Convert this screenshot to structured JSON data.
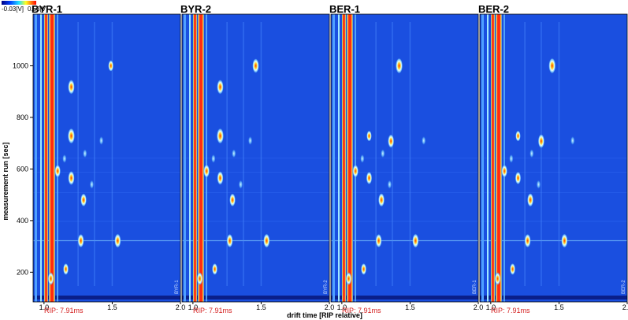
{
  "colorbar": {
    "min_label": "-0.03[V]",
    "max_label": "0.53[V]",
    "min_color": "#000080",
    "max_color": "#ff0000"
  },
  "chart_data": {
    "type": "heatmap",
    "title": "",
    "xlabel": "drift time [RIP relative]",
    "ylabel": "measurement run [sec]",
    "xlim": [
      0.92,
      2.0
    ],
    "ylim": [
      85,
      1200
    ],
    "x_ticks": [
      "1.0",
      "1.5",
      "2.0"
    ],
    "y_ticks": [
      200,
      400,
      600,
      800,
      1000
    ],
    "rip_label": "RIP: 7.91ms",
    "background_color": "#1a4fe0",
    "panels": [
      {
        "name": "BYR-1",
        "vertical_label": "BYR-1",
        "peaks": [
          {
            "x": 1.2,
            "y": 918,
            "i": 0.9
          },
          {
            "x": 1.2,
            "y": 728,
            "i": 1.0
          },
          {
            "x": 1.49,
            "y": 1000,
            "i": 0.55
          },
          {
            "x": 1.1,
            "y": 592,
            "i": 0.7
          },
          {
            "x": 1.2,
            "y": 565,
            "i": 0.85
          },
          {
            "x": 1.29,
            "y": 480,
            "i": 0.75
          },
          {
            "x": 1.27,
            "y": 322,
            "i": 0.8
          },
          {
            "x": 1.54,
            "y": 322,
            "i": 0.85
          },
          {
            "x": 1.16,
            "y": 212,
            "i": 0.6
          },
          {
            "x": 1.05,
            "y": 175,
            "i": 0.7
          },
          {
            "x": 1.42,
            "y": 710,
            "i": 0.3
          },
          {
            "x": 1.3,
            "y": 660,
            "i": 0.3
          },
          {
            "x": 1.15,
            "y": 640,
            "i": 0.3
          },
          {
            "x": 1.35,
            "y": 540,
            "i": 0.3
          }
        ]
      },
      {
        "name": "BYR-2",
        "vertical_label": "BYR-2",
        "peaks": [
          {
            "x": 1.2,
            "y": 918,
            "i": 0.9
          },
          {
            "x": 1.2,
            "y": 728,
            "i": 1.0
          },
          {
            "x": 1.46,
            "y": 1000,
            "i": 0.9
          },
          {
            "x": 1.1,
            "y": 592,
            "i": 0.75
          },
          {
            "x": 1.2,
            "y": 565,
            "i": 0.8
          },
          {
            "x": 1.29,
            "y": 480,
            "i": 0.75
          },
          {
            "x": 1.27,
            "y": 322,
            "i": 0.8
          },
          {
            "x": 1.54,
            "y": 322,
            "i": 0.85
          },
          {
            "x": 1.16,
            "y": 212,
            "i": 0.6
          },
          {
            "x": 1.05,
            "y": 175,
            "i": 0.7
          },
          {
            "x": 1.42,
            "y": 710,
            "i": 0.3
          },
          {
            "x": 1.3,
            "y": 660,
            "i": 0.3
          },
          {
            "x": 1.15,
            "y": 640,
            "i": 0.3
          },
          {
            "x": 1.35,
            "y": 540,
            "i": 0.3
          }
        ]
      },
      {
        "name": "BER-1",
        "vertical_label": "BER-1",
        "peaks": [
          {
            "x": 1.42,
            "y": 1000,
            "i": 1.0
          },
          {
            "x": 1.2,
            "y": 728,
            "i": 0.5
          },
          {
            "x": 1.36,
            "y": 708,
            "i": 0.8
          },
          {
            "x": 1.1,
            "y": 592,
            "i": 0.7
          },
          {
            "x": 1.2,
            "y": 565,
            "i": 0.7
          },
          {
            "x": 1.29,
            "y": 480,
            "i": 0.8
          },
          {
            "x": 1.27,
            "y": 322,
            "i": 0.8
          },
          {
            "x": 1.54,
            "y": 322,
            "i": 0.85
          },
          {
            "x": 1.16,
            "y": 212,
            "i": 0.6
          },
          {
            "x": 1.05,
            "y": 175,
            "i": 0.7
          },
          {
            "x": 1.6,
            "y": 710,
            "i": 0.3
          },
          {
            "x": 1.3,
            "y": 660,
            "i": 0.3
          },
          {
            "x": 1.15,
            "y": 640,
            "i": 0.3
          },
          {
            "x": 1.35,
            "y": 540,
            "i": 0.3
          }
        ]
      },
      {
        "name": "BER-2",
        "vertical_label": "BER-2",
        "peaks": [
          {
            "x": 1.45,
            "y": 1000,
            "i": 1.0
          },
          {
            "x": 1.2,
            "y": 728,
            "i": 0.5
          },
          {
            "x": 1.37,
            "y": 708,
            "i": 0.85
          },
          {
            "x": 1.1,
            "y": 592,
            "i": 0.7
          },
          {
            "x": 1.2,
            "y": 565,
            "i": 0.7
          },
          {
            "x": 1.29,
            "y": 480,
            "i": 0.8
          },
          {
            "x": 1.27,
            "y": 322,
            "i": 0.8
          },
          {
            "x": 1.54,
            "y": 322,
            "i": 0.85
          },
          {
            "x": 1.16,
            "y": 212,
            "i": 0.6
          },
          {
            "x": 1.05,
            "y": 175,
            "i": 0.7
          },
          {
            "x": 1.6,
            "y": 710,
            "i": 0.3
          },
          {
            "x": 1.3,
            "y": 660,
            "i": 0.3
          },
          {
            "x": 1.15,
            "y": 640,
            "i": 0.3
          },
          {
            "x": 1.35,
            "y": 540,
            "i": 0.3
          }
        ]
      }
    ]
  }
}
